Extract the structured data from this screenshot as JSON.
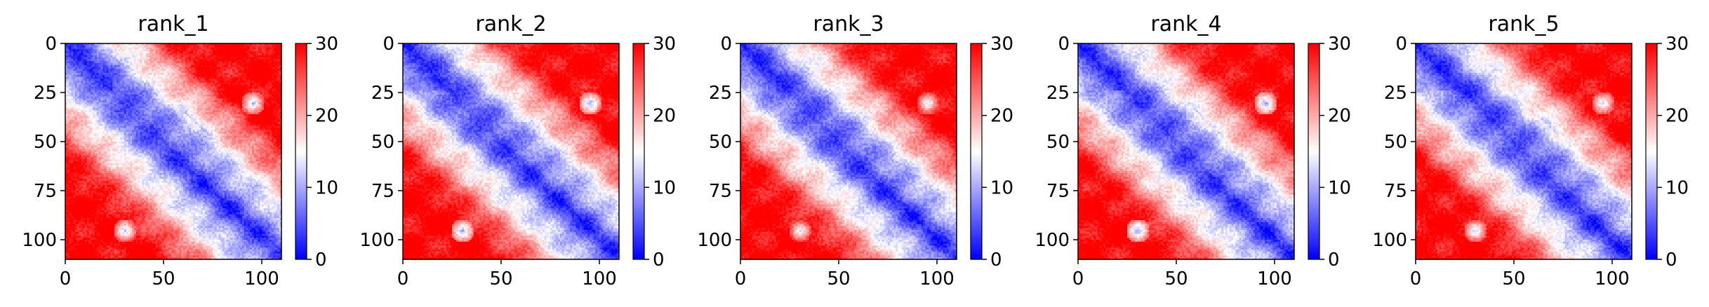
{
  "figure": {
    "panels": [
      {
        "title": "rank_1",
        "ridge_x": 0.52,
        "ridge_y": 0.43,
        "blob_a": 0.5
      },
      {
        "title": "rank_2",
        "ridge_x": 0.48,
        "ridge_y": 0.45,
        "blob_a": 0.3
      },
      {
        "title": "rank_3",
        "ridge_x": 0.47,
        "ridge_y": 0.44,
        "blob_a": 0.8
      },
      {
        "title": "rank_4",
        "ridge_x": 0.5,
        "ridge_y": 0.42,
        "blob_a": 0.2
      },
      {
        "title": "rank_5",
        "ridge_x": 0.55,
        "ridge_y": 0.46,
        "blob_a": 0.6
      }
    ]
  },
  "chart_data": {
    "type": "heatmap",
    "n": 110,
    "xlim": [
      0,
      110
    ],
    "ylim": [
      110,
      0
    ],
    "xticks": [
      "0",
      "50",
      "100"
    ],
    "yticks": [
      "0",
      "25",
      "50",
      "75",
      "100"
    ],
    "colorbar": {
      "min": 0,
      "max": 30,
      "ticks": [
        "0",
        "10",
        "20",
        "30"
      ],
      "colormap": "bwr"
    },
    "colors": {
      "low": "#0000ff",
      "mid": "#ffffff",
      "high": "#ff0000"
    },
    "panel_titles": [
      "rank_1",
      "rank_2",
      "rank_3",
      "rank_4",
      "rank_5"
    ]
  }
}
